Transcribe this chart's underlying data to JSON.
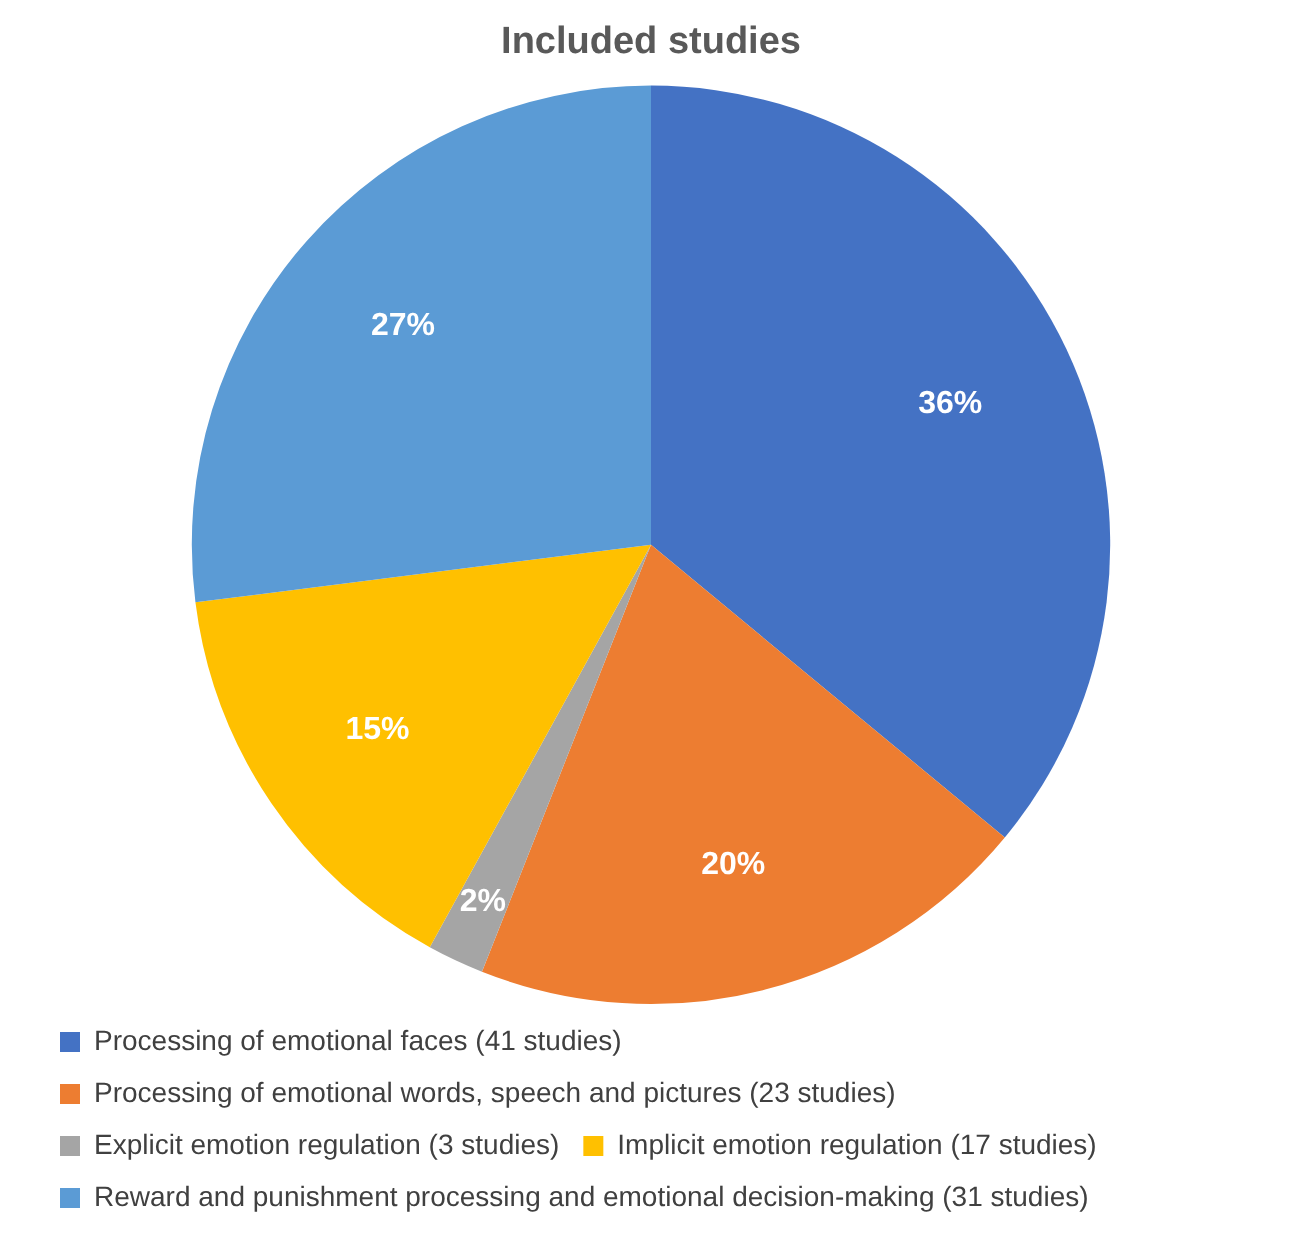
{
  "chart_data": {
    "type": "pie",
    "title": "Included studies",
    "categories": [
      "Processing of emotional faces (41 studies)",
      "Processing of emotional words, speech and pictures (23 studies)",
      "Explicit emotion regulation (3 studies)",
      "Implicit emotion regulation (17 studies)",
      "Reward and punishment processing and emotional decision-making (31 studies)"
    ],
    "values": [
      36,
      20,
      2,
      15,
      27
    ],
    "value_labels": [
      "36%",
      "20%",
      "2%",
      "15%",
      "27%"
    ],
    "colors": [
      "#4472c4",
      "#ed7d31",
      "#a5a5a5",
      "#ffc000",
      "#5b9bd5"
    ],
    "legend": "bottom"
  }
}
